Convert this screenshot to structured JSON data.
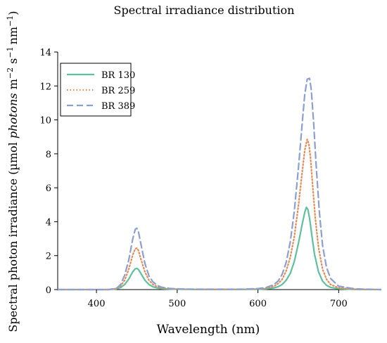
{
  "chart_data": {
    "type": "line",
    "title": "Spectral irradiance distribution",
    "xlabel": "Wavelength (nm)",
    "ylabel_parts": [
      "Spectral photon irradiance (µmol ",
      "photons",
      " m",
      "−2",
      " s",
      "−1",
      "nm",
      "−1",
      ")"
    ],
    "xlim": [
      352,
      752
    ],
    "ylim": [
      0,
      14
    ],
    "x_ticks": [
      400,
      500,
      600,
      700
    ],
    "y_ticks": [
      0,
      2,
      4,
      6,
      8,
      10,
      12,
      14
    ],
    "grid": false,
    "legend_position": "top-left",
    "series": [
      {
        "name": "BR 130",
        "color": "#5fbf9f",
        "dash": "solid",
        "x": [
          352,
          400,
          415,
          425,
          430,
          435,
          440,
          445,
          448,
          450,
          452,
          455,
          460,
          465,
          470,
          475,
          480,
          490,
          500,
          520,
          550,
          580,
          600,
          610,
          620,
          625,
          630,
          635,
          640,
          645,
          650,
          655,
          658,
          660,
          662,
          664,
          667,
          670,
          675,
          680,
          685,
          690,
          700,
          720,
          752
        ],
        "y": [
          0,
          0,
          0,
          0.04,
          0.12,
          0.3,
          0.62,
          1.05,
          1.22,
          1.25,
          1.18,
          0.95,
          0.55,
          0.3,
          0.16,
          0.1,
          0.06,
          0.03,
          0.02,
          0.01,
          0.01,
          0.01,
          0.02,
          0.04,
          0.1,
          0.17,
          0.3,
          0.55,
          0.95,
          1.65,
          2.7,
          3.9,
          4.55,
          4.85,
          4.7,
          4.2,
          3.1,
          2.1,
          1.05,
          0.5,
          0.25,
          0.13,
          0.05,
          0.01,
          0
        ]
      },
      {
        "name": "BR 259",
        "color": "#e58a55",
        "dash": "dotted",
        "x": [
          352,
          400,
          415,
          425,
          430,
          435,
          440,
          445,
          448,
          450,
          452,
          455,
          460,
          465,
          470,
          475,
          480,
          490,
          500,
          520,
          550,
          580,
          600,
          610,
          620,
          625,
          630,
          635,
          640,
          645,
          650,
          655,
          658,
          661,
          663,
          665,
          668,
          671,
          675,
          680,
          685,
          690,
          700,
          720,
          752
        ],
        "y": [
          0,
          0,
          0,
          0.06,
          0.22,
          0.55,
          1.2,
          2.05,
          2.4,
          2.45,
          2.3,
          1.8,
          1.05,
          0.55,
          0.3,
          0.18,
          0.1,
          0.05,
          0.03,
          0.02,
          0.01,
          0.02,
          0.04,
          0.08,
          0.2,
          0.35,
          0.6,
          1.1,
          1.9,
          3.1,
          4.9,
          7.0,
          8.2,
          8.85,
          8.6,
          7.8,
          6.0,
          4.2,
          2.5,
          1.2,
          0.6,
          0.3,
          0.1,
          0.02,
          0
        ]
      },
      {
        "name": "BR 389",
        "color": "#8c9fd0",
        "dash": "dashed",
        "x": [
          352,
          400,
          415,
          425,
          430,
          435,
          440,
          445,
          448,
          450,
          452,
          455,
          460,
          465,
          470,
          475,
          480,
          490,
          500,
          520,
          550,
          580,
          600,
          610,
          620,
          625,
          630,
          635,
          640,
          645,
          650,
          655,
          658,
          661,
          664,
          666,
          669,
          672,
          676,
          680,
          685,
          690,
          700,
          720,
          752
        ],
        "y": [
          0,
          0,
          0,
          0.08,
          0.3,
          0.85,
          1.75,
          3.0,
          3.55,
          3.62,
          3.4,
          2.7,
          1.55,
          0.8,
          0.45,
          0.26,
          0.15,
          0.07,
          0.04,
          0.02,
          0.02,
          0.02,
          0.06,
          0.12,
          0.3,
          0.5,
          0.9,
          1.6,
          2.8,
          4.6,
          7.1,
          9.9,
          11.5,
          12.4,
          12.45,
          11.8,
          9.8,
          7.4,
          4.6,
          2.6,
          1.3,
          0.65,
          0.2,
          0.04,
          0
        ]
      }
    ]
  }
}
